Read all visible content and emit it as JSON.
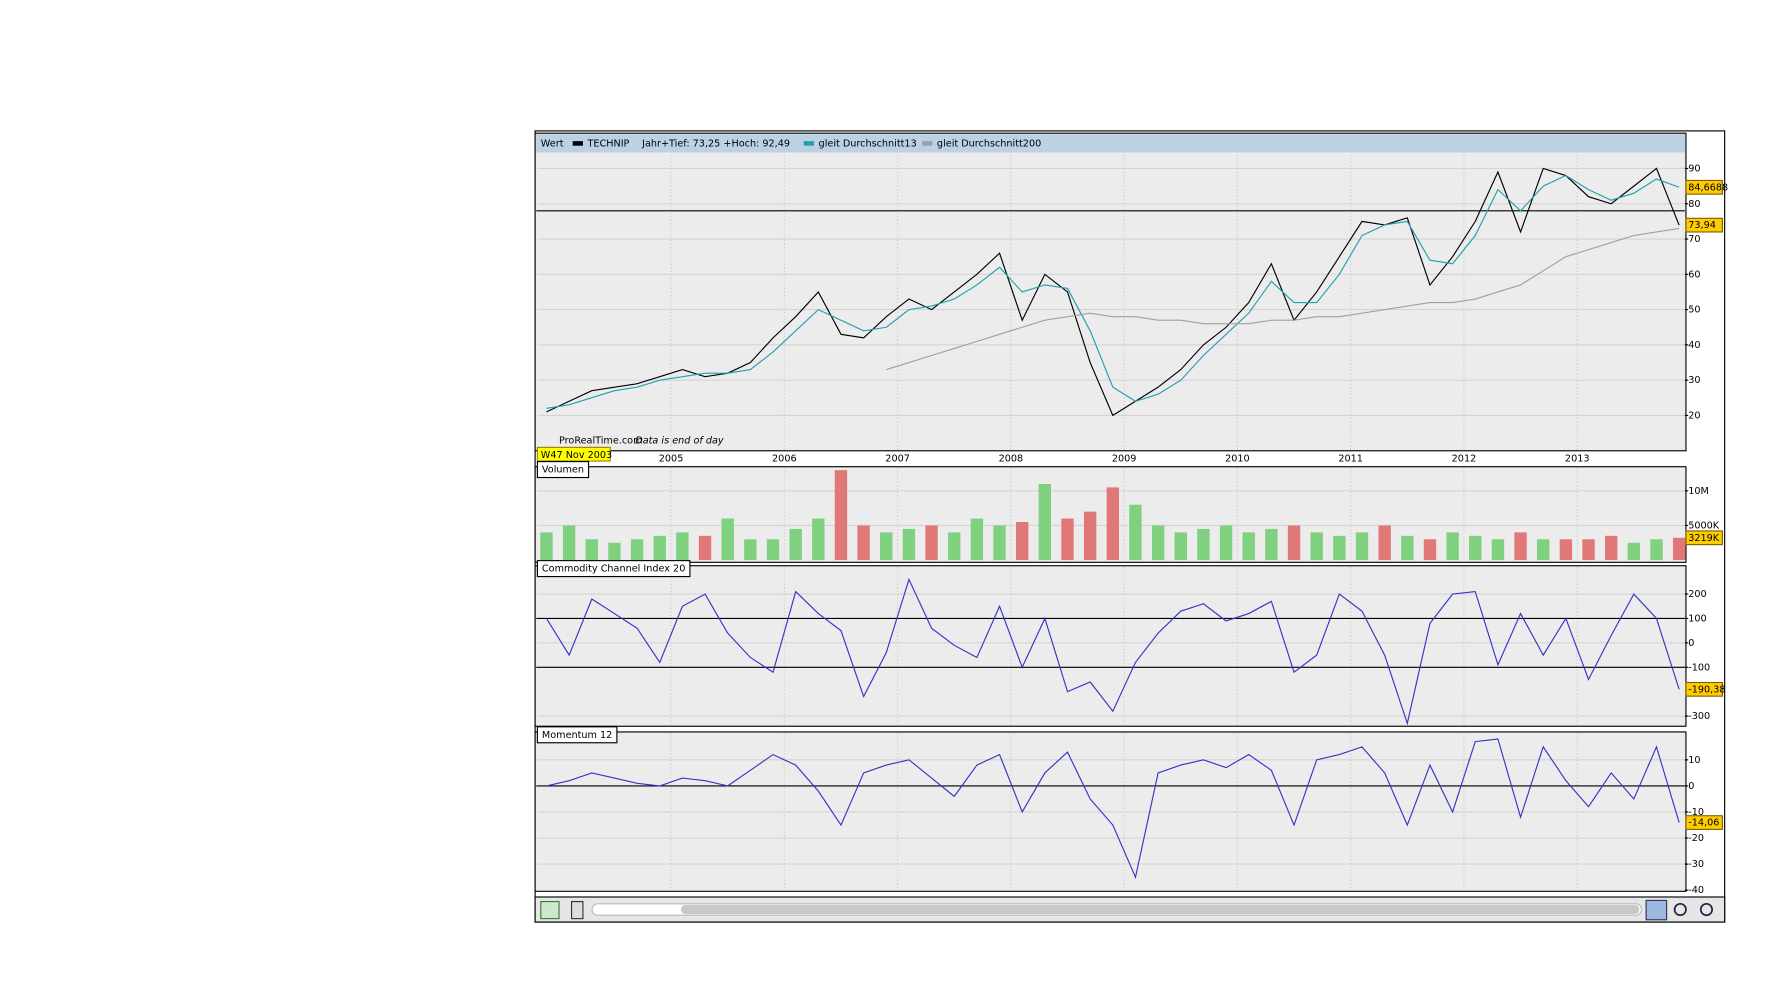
{
  "chart_data": [
    {
      "type": "line",
      "title": "Wert",
      "legend_note": "Jahr+Tief: 73,25 +Hoch: 92,49",
      "source": "ProRealTime.com",
      "note": "Data is end of day",
      "date_label": "W47 Nov 2003",
      "x": [
        2003.9,
        2004.1,
        2004.3,
        2004.5,
        2004.7,
        2004.9,
        2005.1,
        2005.3,
        2005.5,
        2005.7,
        2005.9,
        2006.1,
        2006.3,
        2006.5,
        2006.7,
        2006.9,
        2007.1,
        2007.3,
        2007.5,
        2007.7,
        2007.9,
        2008.1,
        2008.3,
        2008.5,
        2008.7,
        2008.9,
        2009.1,
        2009.3,
        2009.5,
        2009.7,
        2009.9,
        2010.1,
        2010.3,
        2010.5,
        2010.7,
        2010.9,
        2011.1,
        2011.3,
        2011.5,
        2011.7,
        2011.9,
        2012.1,
        2012.3,
        2012.5,
        2012.7,
        2012.9,
        2013.1,
        2013.3,
        2013.5,
        2013.7,
        2013.9
      ],
      "xlim": [
        2003.82,
        2013.95
      ],
      "xticks": [
        2005,
        2006,
        2007,
        2008,
        2009,
        2010,
        2011,
        2012,
        2013
      ],
      "ylim": [
        10.3,
        94.2
      ],
      "yticks": [
        20,
        30,
        40,
        50,
        60,
        70,
        80,
        90
      ],
      "grid": true,
      "hlines": [
        78
      ],
      "series": [
        {
          "name": "TECHNIP",
          "color": "#000000",
          "values": [
            21,
            24,
            27,
            28,
            29,
            31,
            33,
            31,
            32,
            35,
            42,
            48,
            55,
            43,
            42,
            48,
            53,
            50,
            55,
            60,
            66,
            47,
            60,
            55,
            35,
            20,
            24,
            28,
            33,
            40,
            45,
            52,
            63,
            47,
            55,
            65,
            75,
            74,
            76,
            57,
            65,
            75,
            89,
            72,
            90,
            88,
            82,
            80,
            85,
            90,
            73.94
          ]
        },
        {
          "name": "gleit Durchschnitt13",
          "color": "#20a0b0",
          "values": [
            22,
            23,
            25,
            27,
            28,
            30,
            31,
            32,
            32,
            33,
            38,
            44,
            50,
            47,
            44,
            45,
            50,
            51,
            53,
            57,
            62,
            55,
            57,
            56,
            44,
            28,
            24,
            26,
            30,
            37,
            43,
            49,
            58,
            52,
            52,
            60,
            71,
            74,
            75,
            64,
            63,
            71,
            84,
            78,
            85,
            88,
            84,
            81,
            83,
            87,
            84.6688
          ]
        },
        {
          "name": "gleit Durchschnitt200",
          "color": "#a0a0a0",
          "values": [
            null,
            null,
            null,
            null,
            null,
            null,
            null,
            null,
            null,
            null,
            null,
            null,
            null,
            null,
            null,
            33,
            35,
            37,
            39,
            41,
            43,
            45,
            47,
            48,
            49,
            48,
            48,
            47,
            47,
            46,
            46,
            46,
            47,
            47,
            48,
            48,
            49,
            50,
            51,
            52,
            52,
            53,
            55,
            57,
            61,
            65,
            67,
            69,
            71,
            72,
            73
          ]
        }
      ],
      "markers": [
        {
          "value": 84.6688,
          "label": "84,6688"
        },
        {
          "value": 73.94,
          "label": "73,94"
        }
      ]
    },
    {
      "type": "bar",
      "title": "Volumen",
      "up_color": "#7fd07f",
      "down_color": "#e07878",
      "values": [
        4000000,
        5000000,
        3000000,
        2500000,
        3000000,
        3500000,
        4000000,
        3500000,
        6000000,
        3000000,
        3000000,
        4500000,
        6000000,
        13000000,
        5000000,
        4000000,
        4500000,
        5000000,
        4000000,
        6000000,
        5000000,
        5500000,
        11000000,
        6000000,
        7000000,
        10500000,
        8000000,
        5000000,
        4000000,
        4500000,
        5000000,
        4000000,
        4500000,
        5000000,
        4000000,
        3500000,
        4000000,
        5000000,
        3500000,
        3000000,
        4000000,
        3500000,
        3000000,
        4000000,
        3000000,
        3000000,
        3000000,
        3500000,
        2500000,
        3000000,
        3219000
      ],
      "ylim": [
        0,
        13000000
      ],
      "yticks": [
        {
          "value": 5000000,
          "label": "5000K"
        },
        {
          "value": 10000000,
          "label": "10M"
        }
      ],
      "markers": [
        {
          "value": 3219000,
          "label": "3219K"
        }
      ]
    },
    {
      "type": "line",
      "title": "Commodity Channel Index 20",
      "color": "#3434c8",
      "values": [
        100,
        -50,
        180,
        120,
        60,
        -80,
        150,
        200,
        40,
        -60,
        -120,
        210,
        120,
        50,
        -220,
        -40,
        260,
        60,
        -10,
        -60,
        150,
        -100,
        100,
        -200,
        -160,
        -280,
        -80,
        40,
        130,
        160,
        90,
        120,
        170,
        -120,
        -50,
        200,
        130,
        -50,
        -330,
        80,
        200,
        210,
        -90,
        120,
        -50,
        100,
        -150,
        30,
        200,
        100,
        -190.38
      ],
      "ylim": [
        -337,
        302
      ],
      "yticks": [
        -300,
        -100,
        0,
        100,
        200
      ],
      "hlines": [
        100,
        -100
      ],
      "markers": [
        {
          "value": -190.38,
          "label": "-190,38"
        }
      ]
    },
    {
      "type": "line",
      "title": "Momentum 12",
      "color": "#3434c8",
      "values": [
        0,
        2,
        5,
        3,
        1,
        0,
        3,
        2,
        0,
        6,
        12,
        8,
        -2,
        -15,
        5,
        8,
        10,
        3,
        -4,
        8,
        12,
        -10,
        5,
        13,
        -5,
        -15,
        -35,
        5,
        8,
        10,
        7,
        12,
        6,
        -15,
        10,
        12,
        15,
        5,
        -15,
        8,
        -10,
        17,
        18,
        -12,
        15,
        2,
        -8,
        5,
        -5,
        15,
        -14.06
      ],
      "ylim": [
        -40,
        19.4
      ],
      "yticks": [
        -40,
        -30,
        -20,
        -10,
        0,
        10
      ],
      "hlines": [
        0
      ],
      "markers": [
        {
          "value": -14.06,
          "label": "-14,06"
        }
      ]
    }
  ]
}
